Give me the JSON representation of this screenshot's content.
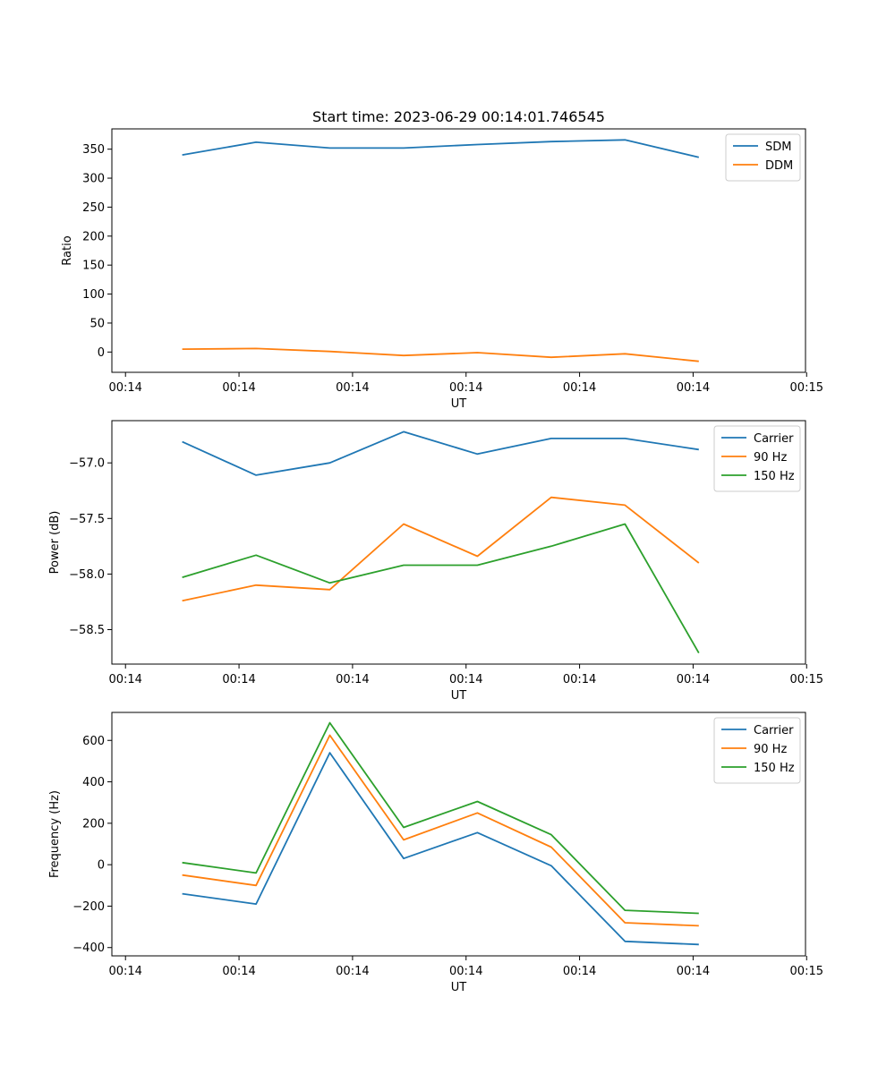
{
  "title": "Start time: 2023-06-29 00:14:01.746545",
  "chart_data": [
    {
      "type": "line",
      "title": "Start time: 2023-06-29 00:14:01.746545",
      "xlabel": "UT",
      "ylabel": "Ratio",
      "x_tick_labels": [
        "00:14",
        "00:14",
        "00:14",
        "00:14",
        "00:14",
        "00:14",
        "00:15"
      ],
      "x_ticks": [
        0,
        1,
        2,
        3,
        4,
        5,
        6
      ],
      "xlim": [
        -0.12,
        5.99
      ],
      "x": [
        0.5,
        1.15,
        1.8,
        2.45,
        3.1,
        3.75,
        4.4,
        5.05
      ],
      "y_ticks": [
        0,
        50,
        100,
        150,
        200,
        250,
        300,
        350
      ],
      "ylim": [
        -35,
        385
      ],
      "legend": "top-right",
      "series": [
        {
          "name": "SDM",
          "color": "#1f77b4",
          "values": [
            340,
            362,
            352,
            352,
            358,
            363,
            366,
            336
          ]
        },
        {
          "name": "DDM",
          "color": "#ff7f0e",
          "values": [
            5,
            6,
            1,
            -6,
            -1,
            -9,
            -3,
            -16
          ]
        }
      ]
    },
    {
      "type": "line",
      "xlabel": "UT",
      "ylabel": "Power (dB)",
      "x_tick_labels": [
        "00:14",
        "00:14",
        "00:14",
        "00:14",
        "00:14",
        "00:14",
        "00:15"
      ],
      "x_ticks": [
        0,
        1,
        2,
        3,
        4,
        5,
        6
      ],
      "xlim": [
        -0.12,
        5.99
      ],
      "x": [
        0.5,
        1.15,
        1.8,
        2.45,
        3.1,
        3.75,
        4.4,
        5.05
      ],
      "y_ticks": [
        -57.0,
        -57.5,
        -58.0,
        -58.5
      ],
      "y_tick_labels": [
        "−57.0",
        "−57.5",
        "−58.0",
        "−58.5"
      ],
      "ylim": [
        -58.81,
        -56.62
      ],
      "legend": "top-right",
      "series": [
        {
          "name": "Carrier",
          "color": "#1f77b4",
          "values": [
            -56.81,
            -57.11,
            -57.0,
            -56.72,
            -56.92,
            -56.78,
            -56.78,
            -56.88
          ]
        },
        {
          "name": "90 Hz",
          "color": "#ff7f0e",
          "values": [
            -58.24,
            -58.1,
            -58.14,
            -57.55,
            -57.84,
            -57.31,
            -57.38,
            -57.9
          ]
        },
        {
          "name": "150 Hz",
          "color": "#2ca02c",
          "values": [
            -58.03,
            -57.83,
            -58.08,
            -57.92,
            -57.92,
            -57.75,
            -57.55,
            -58.71
          ]
        }
      ]
    },
    {
      "type": "line",
      "xlabel": "UT",
      "ylabel": "Frequency (Hz)",
      "x_tick_labels": [
        "00:14",
        "00:14",
        "00:14",
        "00:14",
        "00:14",
        "00:14",
        "00:15"
      ],
      "x_ticks": [
        0,
        1,
        2,
        3,
        4,
        5,
        6
      ],
      "xlim": [
        -0.12,
        5.99
      ],
      "x": [
        0.5,
        1.15,
        1.8,
        2.45,
        3.1,
        3.75,
        4.4,
        5.05
      ],
      "y_ticks": [
        -400,
        -200,
        0,
        200,
        400,
        600
      ],
      "y_tick_labels": [
        "−400",
        "−200",
        "0",
        "200",
        "400",
        "600"
      ],
      "ylim": [
        -440,
        735
      ],
      "legend": "top-right",
      "series": [
        {
          "name": "Carrier",
          "color": "#1f77b4",
          "values": [
            -140,
            -190,
            540,
            30,
            155,
            -5,
            -370,
            -385
          ]
        },
        {
          "name": "90 Hz",
          "color": "#ff7f0e",
          "values": [
            -50,
            -100,
            625,
            120,
            250,
            85,
            -280,
            -295
          ]
        },
        {
          "name": "150 Hz",
          "color": "#2ca02c",
          "values": [
            10,
            -40,
            685,
            180,
            305,
            145,
            -220,
            -235
          ]
        }
      ]
    }
  ]
}
